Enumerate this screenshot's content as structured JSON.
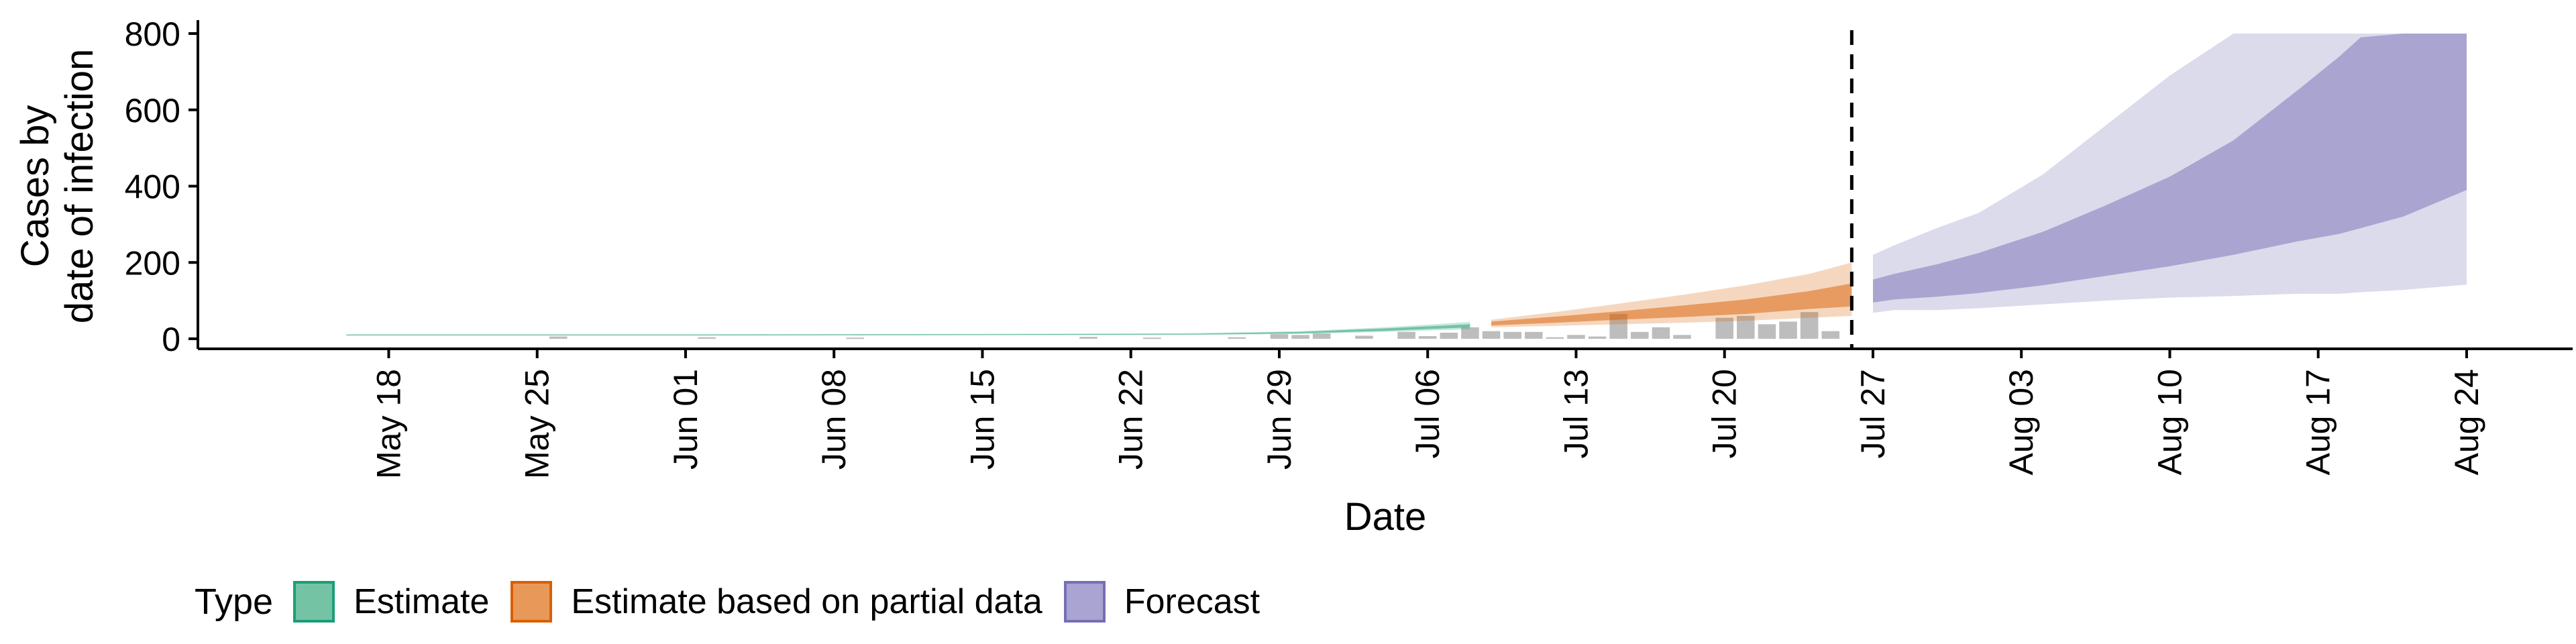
{
  "chart_data": {
    "type": "area",
    "title": "",
    "xlabel": "Date",
    "ylabel": "Cases by\ndate of infection",
    "ylim": [
      0,
      800
    ],
    "y_ticks": [
      0,
      200,
      400,
      600,
      800
    ],
    "x_range": [
      "2020-05-09",
      "2020-08-29"
    ],
    "x_ticks": [
      {
        "date": "2020-05-18",
        "label": "May 18"
      },
      {
        "date": "2020-05-25",
        "label": "May 25"
      },
      {
        "date": "2020-06-01",
        "label": "Jun 01"
      },
      {
        "date": "2020-06-08",
        "label": "Jun 08"
      },
      {
        "date": "2020-06-15",
        "label": "Jun 15"
      },
      {
        "date": "2020-06-22",
        "label": "Jun 22"
      },
      {
        "date": "2020-06-29",
        "label": "Jun 29"
      },
      {
        "date": "2020-07-06",
        "label": "Jul 06"
      },
      {
        "date": "2020-07-13",
        "label": "Jul 13"
      },
      {
        "date": "2020-07-20",
        "label": "Jul 20"
      },
      {
        "date": "2020-07-27",
        "label": "Jul 27"
      },
      {
        "date": "2020-08-03",
        "label": "Aug 03"
      },
      {
        "date": "2020-08-10",
        "label": "Aug 10"
      },
      {
        "date": "2020-08-17",
        "label": "Aug 17"
      },
      {
        "date": "2020-08-24",
        "label": "Aug 24"
      }
    ],
    "grid": false,
    "legend_position": "bottom-left",
    "vline_date": "2020-07-26",
    "reported_cases": [
      {
        "date": "2020-05-26",
        "value": 6
      },
      {
        "date": "2020-06-02",
        "value": 4
      },
      {
        "date": "2020-06-09",
        "value": 3
      },
      {
        "date": "2020-06-20",
        "value": 5
      },
      {
        "date": "2020-06-23",
        "value": 3
      },
      {
        "date": "2020-06-27",
        "value": 4
      },
      {
        "date": "2020-06-29",
        "value": 12
      },
      {
        "date": "2020-06-30",
        "value": 10
      },
      {
        "date": "2020-07-01",
        "value": 14
      },
      {
        "date": "2020-07-03",
        "value": 8
      },
      {
        "date": "2020-07-05",
        "value": 18
      },
      {
        "date": "2020-07-06",
        "value": 7
      },
      {
        "date": "2020-07-07",
        "value": 16
      },
      {
        "date": "2020-07-08",
        "value": 30
      },
      {
        "date": "2020-07-09",
        "value": 20
      },
      {
        "date": "2020-07-10",
        "value": 18
      },
      {
        "date": "2020-07-11",
        "value": 18
      },
      {
        "date": "2020-07-12",
        "value": 4
      },
      {
        "date": "2020-07-13",
        "value": 10
      },
      {
        "date": "2020-07-14",
        "value": 6
      },
      {
        "date": "2020-07-15",
        "value": 65
      },
      {
        "date": "2020-07-16",
        "value": 18
      },
      {
        "date": "2020-07-17",
        "value": 30
      },
      {
        "date": "2020-07-18",
        "value": 10
      },
      {
        "date": "2020-07-20",
        "value": 55
      },
      {
        "date": "2020-07-21",
        "value": 60
      },
      {
        "date": "2020-07-22",
        "value": 38
      },
      {
        "date": "2020-07-23",
        "value": 45
      },
      {
        "date": "2020-07-24",
        "value": 70
      },
      {
        "date": "2020-07-25",
        "value": 20
      }
    ],
    "series": [
      {
        "name": "Estimate",
        "color": "#1b9e77",
        "x": [
          "2020-05-16",
          "2020-06-01",
          "2020-06-15",
          "2020-06-25",
          "2020-06-30",
          "2020-07-04",
          "2020-07-08"
        ],
        "median": [
          10,
          10,
          11,
          12,
          16,
          24,
          34
        ],
        "inner_lower": [
          9,
          9,
          10,
          11,
          14,
          21,
          30
        ],
        "inner_upper": [
          11,
          11,
          12,
          13,
          18,
          27,
          38
        ],
        "outer_lower": [
          8,
          8,
          9,
          10,
          13,
          18,
          25
        ],
        "outer_upper": [
          12,
          12,
          13,
          15,
          20,
          30,
          44
        ]
      },
      {
        "name": "Estimate based on partial data",
        "color": "#d95f02",
        "x": [
          "2020-07-09",
          "2020-07-12",
          "2020-07-15",
          "2020-07-18",
          "2020-07-21",
          "2020-07-24",
          "2020-07-26"
        ],
        "median": [
          40,
          50,
          60,
          72,
          85,
          100,
          115
        ],
        "inner_lower": [
          35,
          42,
          50,
          57,
          65,
          78,
          85
        ],
        "inner_upper": [
          45,
          58,
          72,
          87,
          103,
          125,
          145
        ],
        "outer_lower": [
          30,
          34,
          38,
          42,
          47,
          55,
          60
        ],
        "outer_upper": [
          50,
          70,
          92,
          115,
          140,
          170,
          200
        ]
      },
      {
        "name": "Forecast",
        "color": "#7570b3",
        "x": [
          "2020-07-27",
          "2020-07-28",
          "2020-07-30",
          "2020-08-01",
          "2020-08-04",
          "2020-08-07",
          "2020-08-10",
          "2020-08-13",
          "2020-08-16",
          "2020-08-18",
          "2020-08-19",
          "2020-08-21",
          "2020-08-24"
        ],
        "inner_lower": [
          95,
          103,
          110,
          120,
          140,
          165,
          190,
          220,
          255,
          275,
          290,
          320,
          390
        ],
        "inner_upper": [
          155,
          170,
          195,
          225,
          280,
          350,
          425,
          520,
          650,
          740,
          790,
          800,
          800
        ],
        "outer_lower": [
          68,
          75,
          75,
          80,
          90,
          100,
          108,
          112,
          118,
          118,
          122,
          128,
          142
        ],
        "outer_upper": [
          220,
          245,
          290,
          330,
          430,
          560,
          690,
          800,
          800,
          800,
          800,
          800,
          800
        ]
      }
    ]
  },
  "legend": {
    "title": "Type",
    "items": [
      {
        "label": "Estimate",
        "fill": "#74c3a5",
        "border": "#1b9e77"
      },
      {
        "label": "Estimate based on partial data",
        "fill": "#e8995a",
        "border": "#d95f02"
      },
      {
        "label": "Forecast",
        "fill": "#a9a4d2",
        "border": "#7570b3"
      }
    ]
  }
}
